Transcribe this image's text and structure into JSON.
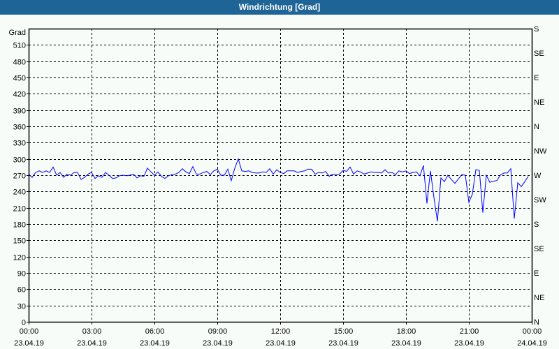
{
  "window": {
    "title": "Windrichtung [Grad]"
  },
  "chart_data": {
    "type": "line",
    "title": "Windrichtung [Grad]",
    "ylabel": "Grad",
    "ylim": [
      0,
      540
    ],
    "xlim": [
      "23.04.19 00:00",
      "24.04.19 00:00"
    ],
    "grid": true,
    "line_color": "#0000ff",
    "y_ticks": [
      0,
      30,
      60,
      90,
      120,
      150,
      180,
      210,
      240,
      270,
      300,
      330,
      360,
      390,
      420,
      450,
      480,
      510
    ],
    "y2_ticks": [
      {
        "value": 540,
        "label": "S"
      },
      {
        "value": 495,
        "label": "SE"
      },
      {
        "value": 450,
        "label": "E"
      },
      {
        "value": 405,
        "label": "NE"
      },
      {
        "value": 360,
        "label": "N"
      },
      {
        "value": 315,
        "label": "NW"
      },
      {
        "value": 270,
        "label": "W"
      },
      {
        "value": 225,
        "label": "SW"
      },
      {
        "value": 180,
        "label": "S"
      },
      {
        "value": 135,
        "label": "SE"
      },
      {
        "value": 90,
        "label": "E"
      },
      {
        "value": 45,
        "label": "NE"
      },
      {
        "value": 0,
        "label": "N"
      }
    ],
    "x_ticks": [
      {
        "time": "00:00",
        "date": "23.04.19"
      },
      {
        "time": "03:00",
        "date": "23.04.19"
      },
      {
        "time": "06:00",
        "date": "23.04.19"
      },
      {
        "time": "09:00",
        "date": "23.04.19"
      },
      {
        "time": "12:00",
        "date": "23.04.19"
      },
      {
        "time": "15:00",
        "date": "23.04.19"
      },
      {
        "time": "18:00",
        "date": "23.04.19"
      },
      {
        "time": "21:00",
        "date": "23.04.19"
      },
      {
        "time": "00:00",
        "date": "24.04.19"
      }
    ],
    "series": [
      {
        "start": "23.04.19 00:00",
        "interval_minutes": 10,
        "values": [
          272,
          266,
          275,
          278,
          275,
          278,
          275,
          285,
          270,
          275,
          266,
          272,
          270,
          275,
          275,
          262,
          266,
          272,
          275,
          264,
          269,
          266,
          275,
          270,
          264,
          265,
          269,
          270,
          269,
          270,
          272,
          265,
          269,
          268,
          283,
          276,
          270,
          276,
          268,
          264,
          269,
          271,
          272,
          275,
          282,
          276,
          273,
          286,
          272,
          272,
          275,
          277,
          271,
          278,
          281,
          270,
          270,
          281,
          260,
          283,
          300,
          278,
          277,
          278,
          275,
          274,
          274,
          276,
          275,
          282,
          272,
          280,
          275,
          273,
          278,
          278,
          278,
          275,
          277,
          278,
          281,
          281,
          272,
          275,
          274,
          277,
          268,
          272,
          271,
          272,
          279,
          277,
          285,
          272,
          278,
          276,
          272,
          274,
          276,
          275,
          275,
          274,
          280,
          274,
          275,
          271,
          278,
          276,
          278,
          273,
          275,
          276,
          269,
          288,
          218,
          278,
          229,
          185,
          265,
          258,
          270,
          262,
          255,
          263,
          271,
          270,
          220,
          235,
          280,
          279,
          201,
          270,
          257,
          259,
          260,
          270,
          274,
          274,
          282,
          190,
          256,
          249,
          258,
          268
        ]
      }
    ]
  }
}
